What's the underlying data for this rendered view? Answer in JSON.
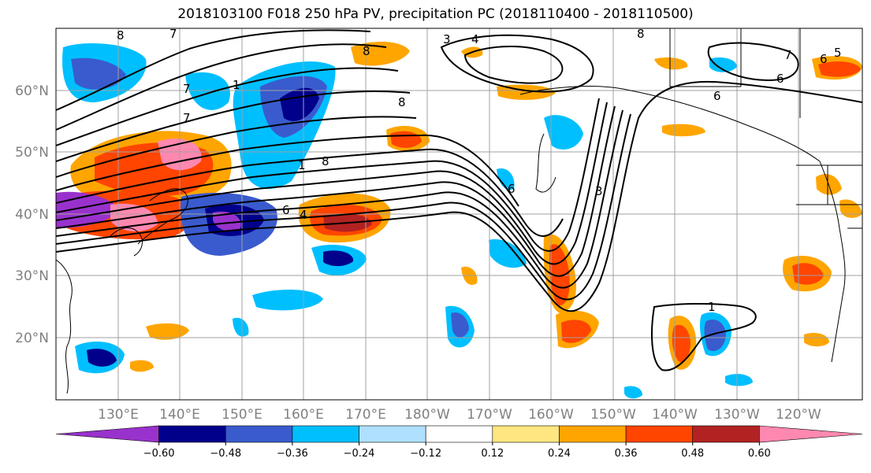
{
  "title": "2018103100 F018 250 hPa PV, precipitation PC (2018110400 - 2018110500)",
  "lat_labels": [
    "60°N",
    "50°N",
    "40°N",
    "30°N",
    "20°N"
  ],
  "lon_labels": [
    "130°E",
    "140°E",
    "150°E",
    "160°E",
    "170°E",
    "180°W",
    "170°W",
    "160°W",
    "150°W",
    "140°W",
    "130°W",
    "120°W"
  ],
  "colorbar": {
    "ticks": [
      "−0.60",
      "−0.48",
      "−0.36",
      "−0.24",
      "−0.12",
      "0.12",
      "0.24",
      "0.36",
      "0.48",
      "0.60"
    ],
    "colors": [
      "#9932cc",
      "#00008b",
      "#3a5bcd",
      "#00bfff",
      "#b0e0ff",
      "#ffffff",
      "#ffe680",
      "#ffa500",
      "#ff4500",
      "#b22222",
      "#ff88b0"
    ]
  },
  "contour_labels": [
    "8",
    "7",
    "3",
    "4",
    "8",
    "8",
    "8",
    "6",
    "5",
    "7",
    "6",
    "7",
    "1",
    "1",
    "8",
    "7",
    "6",
    "4",
    "6",
    "6",
    "3",
    "1"
  ]
}
